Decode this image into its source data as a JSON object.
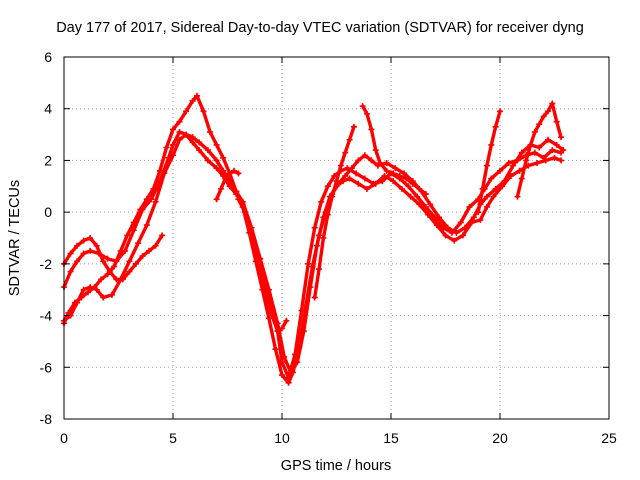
{
  "chart_data": {
    "type": "scatter",
    "title": "Day 177 of 2017, Sidereal Day-to-day VTEC variation (SDTVAR) for receiver dyng",
    "xlabel": "GPS time / hours",
    "ylabel": "SDTVAR / TECUs",
    "xlim": [
      0,
      25
    ],
    "ylim": [
      -8,
      6
    ],
    "xticks": [
      "0",
      "5",
      "10",
      "15",
      "20",
      "25"
    ],
    "yticks": [
      "-8",
      "-6",
      "-4",
      "-2",
      "0",
      "2",
      "4",
      "6"
    ],
    "grid": true,
    "marker": "plus",
    "color": "#ff0000",
    "series": [
      {
        "x": [
          0.0,
          0.3,
          0.6,
          0.9,
          1.2,
          1.6,
          2.0,
          2.4,
          2.8,
          3.2,
          3.6,
          4.0,
          4.4,
          4.8,
          5.0,
          5.3,
          5.6,
          5.9,
          6.2,
          6.6,
          7.0,
          7.3,
          7.6,
          7.9,
          8.2,
          8.6,
          9.0,
          9.4,
          9.8,
          10.0,
          10.3,
          10.6,
          10.9,
          11.2,
          11.5,
          11.8,
          12.1,
          12.4,
          12.7,
          13.0,
          13.4,
          13.8,
          14.2,
          14.6,
          15.0,
          15.4,
          15.8,
          16.2,
          16.6,
          17.0,
          17.4,
          17.8,
          18.2,
          18.6,
          19.0,
          19.3,
          19.6,
          20.0,
          20.4,
          20.8,
          21.2,
          21.6,
          22.0,
          22.4,
          22.8
        ],
        "y": [
          -2.9,
          -2.3,
          -1.9,
          -1.6,
          -1.5,
          -1.6,
          -1.8,
          -1.9,
          -1.5,
          -0.7,
          0.1,
          0.5,
          1.2,
          2.1,
          2.6,
          3.1,
          3.0,
          2.7,
          2.4,
          2.0,
          1.7,
          1.4,
          1.0,
          0.7,
          0.3,
          -0.8,
          -2.0,
          -3.2,
          -4.6,
          -5.8,
          -6.4,
          -5.5,
          -3.8,
          -2.0,
          -0.6,
          0.4,
          1.0,
          1.4,
          1.6,
          1.7,
          1.5,
          1.3,
          1.1,
          1.2,
          1.5,
          1.3,
          1.0,
          0.6,
          0.2,
          -0.2,
          -0.6,
          -0.8,
          -0.4,
          0.2,
          0.5,
          0.9,
          1.3,
          1.6,
          1.9,
          2.0,
          2.2,
          2.3,
          2.1,
          2.4,
          2.3
        ]
      },
      {
        "x": [
          0.0,
          0.3,
          0.6,
          0.9,
          1.2,
          1.5,
          1.8,
          2.2,
          2.6,
          3.0,
          3.4,
          3.8,
          4.2,
          4.6,
          5.0,
          5.3,
          5.6,
          5.9,
          6.2,
          6.6,
          7.0,
          7.3,
          7.6,
          7.9,
          8.2,
          8.6,
          9.0,
          9.4,
          9.8,
          10.1,
          10.4,
          10.7,
          11.0,
          11.3,
          11.6,
          11.9,
          12.2,
          12.5,
          12.8,
          13.1,
          13.5,
          13.9,
          14.3,
          14.7,
          15.1,
          15.5,
          15.9,
          16.3,
          16.7,
          17.1,
          17.5,
          17.9,
          18.3,
          18.7,
          19.1,
          19.4,
          19.7,
          20.1,
          20.5,
          20.9,
          21.3,
          21.7,
          22.1,
          22.5,
          22.8
        ],
        "y": [
          -4.2,
          -4.0,
          -3.5,
          -3.0,
          -2.9,
          -3.0,
          -3.3,
          -3.2,
          -2.6,
          -1.9,
          -1.2,
          -0.5,
          0.4,
          1.5,
          2.2,
          2.8,
          3.0,
          2.9,
          2.7,
          2.4,
          2.0,
          1.6,
          1.2,
          0.8,
          0.4,
          -0.6,
          -1.8,
          -3.0,
          -4.3,
          -5.6,
          -6.2,
          -5.8,
          -4.6,
          -2.9,
          -1.3,
          -0.2,
          0.6,
          1.0,
          1.2,
          1.3,
          1.1,
          0.9,
          1.1,
          1.4,
          1.2,
          0.9,
          0.6,
          0.3,
          -0.1,
          -0.5,
          -0.9,
          -1.1,
          -0.9,
          -0.4,
          -0.3,
          0.2,
          0.6,
          1.0,
          1.4,
          1.6,
          1.8,
          1.9,
          2.0,
          2.1,
          2.0
        ]
      },
      {
        "x": [
          0.0,
          0.2,
          0.5,
          0.8,
          1.1,
          1.4,
          1.7,
          2.0,
          2.3,
          2.6,
          2.9,
          3.2,
          3.5,
          3.8,
          4.1,
          4.4,
          4.7,
          5.0,
          5.3,
          5.6,
          5.9,
          6.1,
          6.4,
          6.7,
          7.0,
          7.3,
          7.6,
          7.9,
          8.2,
          8.5,
          8.8,
          9.1,
          9.4,
          9.7,
          10.0,
          10.3,
          10.5,
          10.8,
          11.1,
          11.4,
          11.7,
          12.0,
          12.3,
          12.6,
          12.9,
          13.2,
          13.5,
          13.8,
          14.1,
          14.4,
          14.8,
          15.2,
          15.6,
          16.0,
          16.4,
          16.8,
          17.2,
          17.6,
          18.0,
          18.4,
          18.8,
          19.1,
          19.4,
          19.8,
          20.2,
          20.6,
          21.0,
          21.4,
          21.8,
          22.2,
          22.6,
          22.9
        ],
        "y": [
          -4.3,
          -3.9,
          -3.5,
          -3.3,
          -3.1,
          -2.9,
          -2.6,
          -2.4,
          -2.1,
          -1.5,
          -0.9,
          -0.4,
          0.1,
          0.5,
          0.9,
          1.6,
          2.5,
          3.2,
          3.5,
          3.9,
          4.3,
          4.5,
          3.9,
          3.1,
          2.6,
          2.1,
          1.5,
          0.8,
          0.2,
          -0.8,
          -1.9,
          -3.0,
          -4.1,
          -5.3,
          -6.3,
          -6.6,
          -6.2,
          -5.2,
          -3.6,
          -2.1,
          -0.9,
          0.0,
          0.7,
          1.1,
          1.4,
          1.7,
          2.0,
          2.2,
          2.0,
          1.8,
          1.9,
          1.7,
          1.5,
          1.2,
          0.8,
          0.3,
          -0.2,
          -0.6,
          -0.8,
          -0.6,
          -0.2,
          0.3,
          0.6,
          0.9,
          1.2,
          1.8,
          2.3,
          2.6,
          2.5,
          2.8,
          2.6,
          2.4
        ]
      },
      {
        "x": [
          0.0,
          0.3,
          0.6,
          0.9,
          1.2,
          1.5,
          1.8,
          2.1,
          2.4,
          2.7,
          3.0,
          3.3,
          3.6,
          3.9,
          4.2,
          4.5
        ],
        "y": [
          -2.0,
          -1.6,
          -1.3,
          -1.1,
          -1.0,
          -1.3,
          -1.9,
          -2.3,
          -2.6,
          -2.6,
          -2.3,
          -2.0,
          -1.7,
          -1.5,
          -1.3,
          -0.9
        ]
      },
      {
        "x": [
          8.0,
          8.3,
          8.6,
          8.9,
          9.2,
          9.5,
          9.8,
          10.0,
          10.2
        ],
        "y": [
          0.5,
          0.0,
          -0.8,
          -1.8,
          -2.9,
          -3.9,
          -4.6,
          -4.5,
          -4.2
        ]
      },
      {
        "x": [
          7.0,
          7.2,
          7.4,
          7.6,
          7.8,
          8.0
        ],
        "y": [
          0.5,
          0.9,
          1.3,
          1.5,
          1.6,
          1.5
        ]
      },
      {
        "x": [
          13.7,
          13.9,
          14.1,
          14.3,
          14.5,
          14.8,
          15.1,
          15.4,
          15.7,
          16.0,
          16.3,
          16.6
        ],
        "y": [
          4.1,
          3.8,
          3.2,
          2.4,
          1.9,
          1.6,
          1.5,
          1.4,
          1.3,
          1.1,
          0.9,
          0.7
        ]
      },
      {
        "x": [
          11.5,
          11.7,
          11.9,
          12.1,
          12.3,
          12.5,
          12.7,
          12.9,
          13.1,
          13.3
        ],
        "y": [
          -3.3,
          -2.2,
          -1.0,
          -0.1,
          0.6,
          1.2,
          1.8,
          2.3,
          2.8,
          3.3
        ]
      },
      {
        "x": [
          19.0,
          19.2,
          19.4,
          19.6,
          19.8,
          20.0
        ],
        "y": [
          0.0,
          0.9,
          1.8,
          2.6,
          3.3,
          3.9
        ]
      },
      {
        "x": [
          20.8,
          21.0,
          21.2,
          21.4,
          21.6,
          21.8,
          22.0,
          22.2,
          22.4,
          22.6,
          22.8
        ],
        "y": [
          0.6,
          1.3,
          2.0,
          2.6,
          3.1,
          3.4,
          3.7,
          3.9,
          4.2,
          3.5,
          2.9
        ]
      }
    ]
  }
}
